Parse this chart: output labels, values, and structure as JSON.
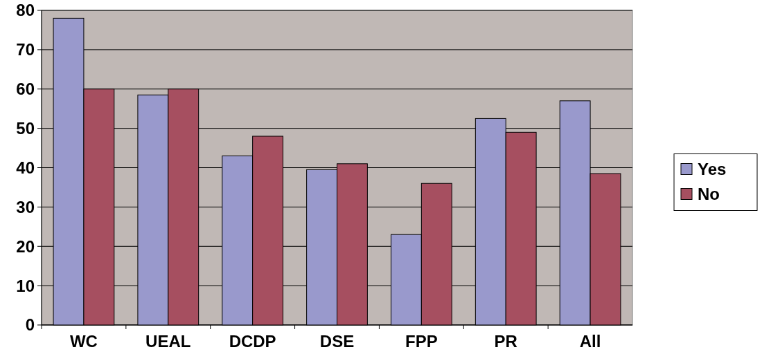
{
  "chart_data": {
    "type": "bar",
    "categories": [
      "WC",
      "UEAL",
      "DCDP",
      "DSE",
      "FPP",
      "PR",
      "All"
    ],
    "series": [
      {
        "name": "Yes",
        "color": "#9999cc",
        "values": [
          78,
          58.5,
          43,
          39.5,
          23,
          52.5,
          57
        ]
      },
      {
        "name": "No",
        "color": "#a64f60",
        "values": [
          60,
          60,
          48,
          41,
          36,
          49,
          38.5
        ]
      }
    ],
    "ylim": [
      0,
      80
    ],
    "yticks": [
      0,
      10,
      20,
      30,
      40,
      50,
      60,
      70,
      80
    ],
    "grid": "y",
    "legend": "right"
  }
}
